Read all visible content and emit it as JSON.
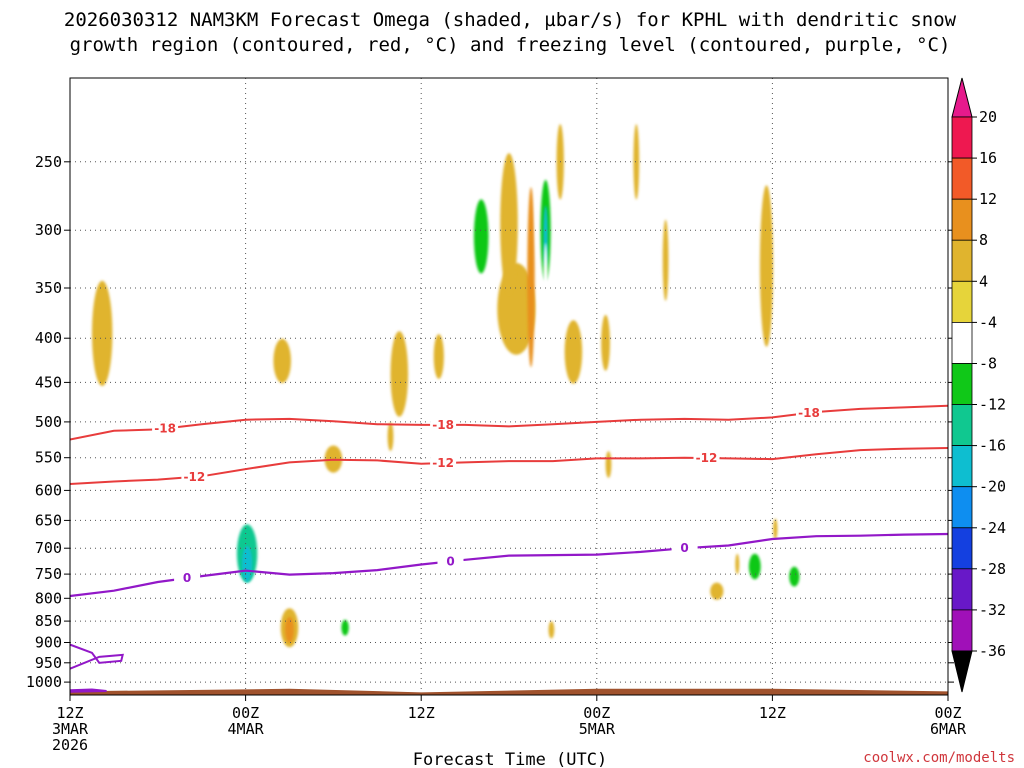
{
  "chart_data": {
    "type": "heatmap",
    "title_line1": "2026030312 NAM3KM Forecast Omega (shaded, µbar/s) for KPHL with dendritic snow",
    "title_line2": "growth region (contoured, red, °C) and freezing level (contoured, purple, °C)",
    "xlabel": "Forecast Time (UTC)",
    "credit": "coolwx.com/modelts",
    "x_range_hours": [
      0,
      60
    ],
    "y_range_hpa": [
      1035,
      200
    ],
    "y_ticks": [
      250,
      300,
      350,
      400,
      450,
      500,
      550,
      600,
      650,
      700,
      750,
      800,
      850,
      900,
      950,
      1000
    ],
    "x_ticks": [
      {
        "hour": 0,
        "lines": [
          "12Z",
          "3MAR",
          "2026"
        ]
      },
      {
        "hour": 12,
        "lines": [
          "00Z",
          "4MAR"
        ]
      },
      {
        "hour": 24,
        "lines": [
          "12Z"
        ]
      },
      {
        "hour": 36,
        "lines": [
          "00Z",
          "5MAR"
        ]
      },
      {
        "hour": 48,
        "lines": [
          "12Z"
        ]
      },
      {
        "hour": 60,
        "lines": [
          "00Z",
          "6MAR"
        ]
      }
    ],
    "colorbar": {
      "levels": [
        20,
        16,
        12,
        8,
        4,
        -4,
        -8,
        -12,
        -16,
        -20,
        -24,
        -28,
        -32,
        -36
      ],
      "colors": [
        "#ee1850",
        "#f25a28",
        "#e8901e",
        "#e0b42e",
        "#e6d43a",
        "#ffffff",
        "#10c818",
        "#10c890",
        "#0ebed0",
        "#0e8ef0",
        "#1440e0",
        "#6818c8",
        "#a010b8",
        "#a8a8a8"
      ],
      "top_arrow_color": "#e61a8c",
      "bottom_arrow_color": "#000000"
    },
    "dgz_contours": [
      {
        "value": -18,
        "label": "-18",
        "color": "#e83c3c",
        "points": [
          [
            0,
            524
          ],
          [
            3,
            512
          ],
          [
            6,
            510
          ],
          [
            9,
            503
          ],
          [
            12,
            497
          ],
          [
            15,
            496
          ],
          [
            18,
            499
          ],
          [
            21,
            503
          ],
          [
            24,
            504
          ],
          [
            27,
            504
          ],
          [
            30,
            506
          ],
          [
            33,
            503
          ],
          [
            36,
            500
          ],
          [
            39,
            497
          ],
          [
            42,
            496
          ],
          [
            45,
            497
          ],
          [
            48,
            494
          ],
          [
            51,
            487
          ],
          [
            54,
            483
          ],
          [
            57,
            481
          ],
          [
            60,
            479
          ]
        ]
      },
      {
        "value": -12,
        "label": "-12",
        "color": "#e83c3c",
        "points": [
          [
            0,
            590
          ],
          [
            3,
            586
          ],
          [
            6,
            583
          ],
          [
            9,
            578
          ],
          [
            12,
            567
          ],
          [
            15,
            557
          ],
          [
            18,
            553
          ],
          [
            21,
            554
          ],
          [
            24,
            559
          ],
          [
            27,
            557
          ],
          [
            30,
            555
          ],
          [
            33,
            555
          ],
          [
            36,
            551
          ],
          [
            39,
            551
          ],
          [
            42,
            550
          ],
          [
            45,
            551
          ],
          [
            48,
            552
          ],
          [
            51,
            545
          ],
          [
            54,
            539
          ],
          [
            57,
            537
          ],
          [
            60,
            536
          ]
        ]
      }
    ],
    "freezing_level": {
      "value": 0,
      "label": "0",
      "color": "#9218c8",
      "points": [
        [
          0,
          795
        ],
        [
          3,
          784
        ],
        [
          6,
          766
        ],
        [
          9,
          754
        ],
        [
          12,
          743
        ],
        [
          15,
          751
        ],
        [
          18,
          748
        ],
        [
          21,
          742
        ],
        [
          24,
          731
        ],
        [
          27,
          722
        ],
        [
          30,
          714
        ],
        [
          33,
          713
        ],
        [
          36,
          712
        ],
        [
          39,
          707
        ],
        [
          42,
          700
        ],
        [
          45,
          695
        ],
        [
          48,
          683
        ],
        [
          51,
          678
        ],
        [
          54,
          677
        ],
        [
          57,
          675
        ],
        [
          60,
          674
        ]
      ]
    },
    "shaded_regions": [
      {
        "t": 2.2,
        "p": 395,
        "wt": 0.7,
        "wp": 55,
        "val": 5
      },
      {
        "t": 12.2,
        "p": 430,
        "wt": 1.1,
        "wp": 75,
        "val": -5
      },
      {
        "t": 12.1,
        "p": 705,
        "wt": 1.3,
        "wp": 90,
        "val": -8
      },
      {
        "t": 12.1,
        "p": 710,
        "wt": 0.7,
        "wp": 55,
        "val": -14
      },
      {
        "t": 12.1,
        "p": 730,
        "wt": 0.35,
        "wp": 35,
        "val": -18
      },
      {
        "t": 1.2,
        "p": 935,
        "wt": 2.8,
        "wp": 45,
        "val": -6
      },
      {
        "t": 6.3,
        "p": 920,
        "wt": 4.2,
        "wp": 38,
        "val": -6
      },
      {
        "t": 10.6,
        "p": 955,
        "wt": 2.0,
        "wp": 15,
        "val": -6
      },
      {
        "t": 6.2,
        "p": 680,
        "wt": 0.55,
        "wp": 25,
        "val": -6
      },
      {
        "t": 14.5,
        "p": 425,
        "wt": 0.6,
        "wp": 25,
        "val": 5
      },
      {
        "t": 15.0,
        "p": 865,
        "wt": 0.6,
        "wp": 45,
        "val": 6
      },
      {
        "t": 15.0,
        "p": 870,
        "wt": 0.3,
        "wp": 30,
        "val": 10
      },
      {
        "t": 15.5,
        "p": 800,
        "wt": 0.45,
        "wp": 15,
        "val": -6
      },
      {
        "t": 17.0,
        "p": 900,
        "wt": 0.35,
        "wp": 12,
        "val": -6
      },
      {
        "t": 18.0,
        "p": 552,
        "wt": 0.6,
        "wp": 20,
        "val": 5
      },
      {
        "t": 18.8,
        "p": 865,
        "wt": 0.55,
        "wp": 35,
        "val": -6
      },
      {
        "t": 18.8,
        "p": 865,
        "wt": 0.25,
        "wp": 18,
        "val": -10
      },
      {
        "t": 21.2,
        "p": 810,
        "wt": 0.7,
        "wp": 45,
        "val": -6
      },
      {
        "t": 20.8,
        "p": 930,
        "wt": 0.4,
        "wp": 12,
        "val": -6
      },
      {
        "t": 18.4,
        "p": 360,
        "wt": 0.25,
        "wp": 20,
        "val": -6
      },
      {
        "t": 22.5,
        "p": 440,
        "wt": 0.6,
        "wp": 50,
        "val": 5
      },
      {
        "t": 21.9,
        "p": 520,
        "wt": 0.2,
        "wp": 20,
        "val": 5
      },
      {
        "t": 23.4,
        "p": 305,
        "wt": 0.2,
        "wp": 15,
        "val": -6
      },
      {
        "t": 25.2,
        "p": 420,
        "wt": 0.35,
        "wp": 25,
        "val": 5
      },
      {
        "t": 28.2,
        "p": 300,
        "wt": 1.1,
        "wp": 55,
        "val": -6
      },
      {
        "t": 28.1,
        "p": 305,
        "wt": 0.5,
        "wp": 30,
        "val": -11
      },
      {
        "t": 30.5,
        "p": 370,
        "wt": 1.3,
        "wp": 45,
        "val": 5
      },
      {
        "t": 30.0,
        "p": 295,
        "wt": 0.6,
        "wp": 55,
        "val": 5
      },
      {
        "t": 31.5,
        "p": 340,
        "wt": 0.25,
        "wp": 80,
        "val": 8
      },
      {
        "t": 32.5,
        "p": 290,
        "wt": 0.7,
        "wp": 60,
        "val": -6
      },
      {
        "t": 32.5,
        "p": 300,
        "wt": 0.35,
        "wp": 40,
        "val": -12
      },
      {
        "t": 32.5,
        "p": 305,
        "wt": 0.15,
        "wp": 25,
        "val": -18
      },
      {
        "t": 32.5,
        "p": 450,
        "wt": 0.25,
        "wp": 160,
        "val": -6
      },
      {
        "t": 32.5,
        "p": 700,
        "wt": 0.3,
        "wp": 130,
        "val": -6
      },
      {
        "t": 33.5,
        "p": 250,
        "wt": 0.25,
        "wp": 25,
        "val": 5
      },
      {
        "t": 35.0,
        "p": 285,
        "wt": 0.6,
        "wp": 55,
        "val": -6
      },
      {
        "t": 34.4,
        "p": 415,
        "wt": 0.6,
        "wp": 35,
        "val": 5
      },
      {
        "t": 36.6,
        "p": 405,
        "wt": 0.3,
        "wp": 30,
        "val": 5
      },
      {
        "t": 32.9,
        "p": 870,
        "wt": 0.2,
        "wp": 20,
        "val": 5
      },
      {
        "t": 36.8,
        "p": 560,
        "wt": 0.2,
        "wp": 20,
        "val": 5
      },
      {
        "t": 38.7,
        "p": 250,
        "wt": 0.2,
        "wp": 25,
        "val": 5
      },
      {
        "t": 40.7,
        "p": 325,
        "wt": 0.2,
        "wp": 35,
        "val": 5
      },
      {
        "t": 44.2,
        "p": 785,
        "wt": 0.45,
        "wp": 18,
        "val": 5
      },
      {
        "t": 45.6,
        "p": 730,
        "wt": 0.1,
        "wp": 20,
        "val": 5
      },
      {
        "t": 46.5,
        "p": 690,
        "wt": 0.7,
        "wp": 45,
        "val": -6
      },
      {
        "t": 46.8,
        "p": 735,
        "wt": 0.4,
        "wp": 25,
        "val": -12
      },
      {
        "t": 48.2,
        "p": 665,
        "wt": 0.15,
        "wp": 18,
        "val": 5
      },
      {
        "t": 49.5,
        "p": 750,
        "wt": 0.7,
        "wp": 40,
        "val": -6
      },
      {
        "t": 49.5,
        "p": 755,
        "wt": 0.35,
        "wp": 20,
        "val": -10
      },
      {
        "t": 47.6,
        "p": 330,
        "wt": 0.45,
        "wp": 70,
        "val": 5
      },
      {
        "t": 58.6,
        "p": 975,
        "wt": 0.5,
        "wp": 4,
        "val": -6
      },
      {
        "t": 60.0,
        "p": 750,
        "wt": 0.35,
        "wp": 20,
        "val": -6
      }
    ]
  }
}
